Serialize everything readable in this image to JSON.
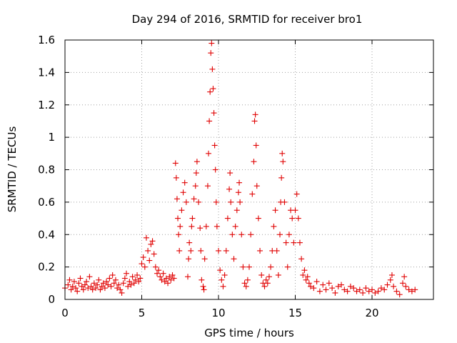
{
  "chart_data": {
    "type": "scatter",
    "title": "Day 294 of 2016, SRMTID for receiver bro1",
    "xlabel": "GPS time / hours",
    "ylabel": "SRMTID / TECUs",
    "xlim": [
      0,
      24
    ],
    "ylim": [
      0,
      1.6
    ],
    "x_ticks": [
      0,
      5,
      10,
      15,
      20
    ],
    "y_ticks": [
      0,
      0.2,
      0.4,
      0.6,
      0.8,
      1,
      1.2,
      1.4,
      1.6
    ],
    "x_tick_labels": [
      "0",
      "5",
      "10",
      "15",
      "20"
    ],
    "y_tick_labels": [
      "0",
      "0.2",
      "0.4",
      "0.6",
      "0.8",
      "1",
      "1.2",
      "1.4",
      "1.6"
    ],
    "grid": true,
    "marker": "+",
    "color": "#e00000",
    "series": [
      {
        "name": "bro1",
        "points": [
          [
            0.0,
            0.07
          ],
          [
            0.2,
            0.09
          ],
          [
            0.3,
            0.12
          ],
          [
            0.4,
            0.06
          ],
          [
            0.5,
            0.08
          ],
          [
            0.6,
            0.11
          ],
          [
            0.7,
            0.07
          ],
          [
            0.8,
            0.05
          ],
          [
            0.9,
            0.1
          ],
          [
            1.0,
            0.13
          ],
          [
            1.1,
            0.08
          ],
          [
            1.2,
            0.06
          ],
          [
            1.3,
            0.09
          ],
          [
            1.4,
            0.11
          ],
          [
            1.5,
            0.07
          ],
          [
            1.6,
            0.14
          ],
          [
            1.7,
            0.08
          ],
          [
            1.8,
            0.06
          ],
          [
            1.9,
            0.1
          ],
          [
            2.0,
            0.07
          ],
          [
            2.1,
            0.09
          ],
          [
            2.2,
            0.12
          ],
          [
            2.3,
            0.06
          ],
          [
            2.4,
            0.08
          ],
          [
            2.5,
            0.1
          ],
          [
            2.6,
            0.07
          ],
          [
            2.7,
            0.11
          ],
          [
            2.8,
            0.09
          ],
          [
            2.9,
            0.13
          ],
          [
            3.0,
            0.08
          ],
          [
            3.1,
            0.15
          ],
          [
            3.2,
            0.1
          ],
          [
            3.3,
            0.12
          ],
          [
            3.4,
            0.07
          ],
          [
            3.5,
            0.09
          ],
          [
            3.6,
            0.06
          ],
          [
            3.7,
            0.04
          ],
          [
            3.8,
            0.1
          ],
          [
            3.9,
            0.13
          ],
          [
            4.0,
            0.16
          ],
          [
            4.1,
            0.08
          ],
          [
            4.2,
            0.11
          ],
          [
            4.3,
            0.09
          ],
          [
            4.4,
            0.14
          ],
          [
            4.5,
            0.1
          ],
          [
            4.6,
            0.12
          ],
          [
            4.7,
            0.15
          ],
          [
            4.8,
            0.11
          ],
          [
            4.9,
            0.13
          ],
          [
            5.0,
            0.22
          ],
          [
            5.1,
            0.26
          ],
          [
            5.2,
            0.2
          ],
          [
            5.3,
            0.38
          ],
          [
            5.4,
            0.3
          ],
          [
            5.5,
            0.24
          ],
          [
            5.6,
            0.34
          ],
          [
            5.7,
            0.36
          ],
          [
            5.8,
            0.28
          ],
          [
            5.9,
            0.2
          ],
          [
            6.0,
            0.16
          ],
          [
            6.1,
            0.18
          ],
          [
            6.2,
            0.14
          ],
          [
            6.3,
            0.12
          ],
          [
            6.4,
            0.16
          ],
          [
            6.5,
            0.11
          ],
          [
            6.6,
            0.13
          ],
          [
            6.7,
            0.1
          ],
          [
            6.8,
            0.14
          ],
          [
            6.9,
            0.12
          ],
          [
            7.0,
            0.15
          ],
          [
            7.1,
            0.13
          ],
          [
            7.2,
            0.84
          ],
          [
            7.25,
            0.75
          ],
          [
            7.3,
            0.62
          ],
          [
            7.35,
            0.5
          ],
          [
            7.4,
            0.4
          ],
          [
            7.45,
            0.3
          ],
          [
            7.5,
            0.45
          ],
          [
            7.6,
            0.55
          ],
          [
            7.7,
            0.66
          ],
          [
            7.8,
            0.72
          ],
          [
            7.9,
            0.6
          ],
          [
            8.0,
            0.14
          ],
          [
            8.05,
            0.25
          ],
          [
            8.1,
            0.35
          ],
          [
            8.2,
            0.3
          ],
          [
            8.25,
            0.45
          ],
          [
            8.3,
            0.5
          ],
          [
            8.4,
            0.62
          ],
          [
            8.5,
            0.7
          ],
          [
            8.55,
            0.78
          ],
          [
            8.6,
            0.85
          ],
          [
            8.7,
            0.6
          ],
          [
            8.8,
            0.44
          ],
          [
            8.85,
            0.3
          ],
          [
            8.9,
            0.12
          ],
          [
            9.0,
            0.08
          ],
          [
            9.05,
            0.06
          ],
          [
            9.1,
            0.25
          ],
          [
            9.2,
            0.45
          ],
          [
            9.3,
            0.7
          ],
          [
            9.35,
            0.9
          ],
          [
            9.4,
            1.1
          ],
          [
            9.45,
            1.28
          ],
          [
            9.5,
            1.52
          ],
          [
            9.55,
            1.58
          ],
          [
            9.6,
            1.42
          ],
          [
            9.65,
            1.3
          ],
          [
            9.7,
            1.15
          ],
          [
            9.75,
            0.95
          ],
          [
            9.8,
            0.8
          ],
          [
            9.85,
            0.6
          ],
          [
            9.9,
            0.45
          ],
          [
            10.0,
            0.3
          ],
          [
            10.1,
            0.18
          ],
          [
            10.2,
            0.12
          ],
          [
            10.3,
            0.08
          ],
          [
            10.4,
            0.15
          ],
          [
            10.5,
            0.3
          ],
          [
            10.6,
            0.5
          ],
          [
            10.7,
            0.68
          ],
          [
            10.75,
            0.78
          ],
          [
            10.8,
            0.6
          ],
          [
            10.9,
            0.4
          ],
          [
            11.0,
            0.25
          ],
          [
            11.1,
            0.45
          ],
          [
            11.2,
            0.55
          ],
          [
            11.3,
            0.66
          ],
          [
            11.35,
            0.72
          ],
          [
            11.4,
            0.6
          ],
          [
            11.5,
            0.4
          ],
          [
            11.6,
            0.2
          ],
          [
            11.7,
            0.1
          ],
          [
            11.8,
            0.08
          ],
          [
            11.9,
            0.12
          ],
          [
            12.0,
            0.2
          ],
          [
            12.1,
            0.4
          ],
          [
            12.2,
            0.65
          ],
          [
            12.3,
            0.85
          ],
          [
            12.35,
            1.1
          ],
          [
            12.4,
            1.14
          ],
          [
            12.45,
            0.95
          ],
          [
            12.5,
            0.7
          ],
          [
            12.6,
            0.5
          ],
          [
            12.7,
            0.3
          ],
          [
            12.8,
            0.15
          ],
          [
            12.9,
            0.1
          ],
          [
            13.0,
            0.08
          ],
          [
            13.1,
            0.12
          ],
          [
            13.2,
            0.1
          ],
          [
            13.3,
            0.14
          ],
          [
            13.4,
            0.2
          ],
          [
            13.5,
            0.3
          ],
          [
            13.6,
            0.45
          ],
          [
            13.7,
            0.55
          ],
          [
            13.8,
            0.3
          ],
          [
            13.9,
            0.15
          ],
          [
            14.0,
            0.4
          ],
          [
            14.05,
            0.6
          ],
          [
            14.1,
            0.75
          ],
          [
            14.15,
            0.9
          ],
          [
            14.2,
            0.85
          ],
          [
            14.3,
            0.6
          ],
          [
            14.4,
            0.35
          ],
          [
            14.5,
            0.2
          ],
          [
            14.6,
            0.4
          ],
          [
            14.7,
            0.55
          ],
          [
            14.8,
            0.5
          ],
          [
            14.9,
            0.35
          ],
          [
            15.0,
            0.55
          ],
          [
            15.1,
            0.65
          ],
          [
            15.2,
            0.5
          ],
          [
            15.3,
            0.35
          ],
          [
            15.4,
            0.25
          ],
          [
            15.5,
            0.15
          ],
          [
            15.6,
            0.18
          ],
          [
            15.7,
            0.12
          ],
          [
            15.8,
            0.14
          ],
          [
            15.9,
            0.1
          ],
          [
            16.0,
            0.08
          ],
          [
            16.2,
            0.07
          ],
          [
            16.4,
            0.11
          ],
          [
            16.6,
            0.05
          ],
          [
            16.8,
            0.09
          ],
          [
            17.0,
            0.06
          ],
          [
            17.2,
            0.1
          ],
          [
            17.4,
            0.07
          ],
          [
            17.6,
            0.04
          ],
          [
            17.8,
            0.08
          ],
          [
            18.0,
            0.09
          ],
          [
            18.2,
            0.06
          ],
          [
            18.4,
            0.05
          ],
          [
            18.6,
            0.08
          ],
          [
            18.8,
            0.07
          ],
          [
            19.0,
            0.05
          ],
          [
            19.2,
            0.06
          ],
          [
            19.4,
            0.04
          ],
          [
            19.6,
            0.07
          ],
          [
            19.8,
            0.05
          ],
          [
            20.0,
            0.06
          ],
          [
            20.2,
            0.04
          ],
          [
            20.4,
            0.05
          ],
          [
            20.6,
            0.07
          ],
          [
            20.8,
            0.06
          ],
          [
            21.0,
            0.09
          ],
          [
            21.2,
            0.12
          ],
          [
            21.3,
            0.15
          ],
          [
            21.4,
            0.08
          ],
          [
            21.6,
            0.05
          ],
          [
            21.8,
            0.03
          ],
          [
            22.0,
            0.1
          ],
          [
            22.1,
            0.14
          ],
          [
            22.2,
            0.08
          ],
          [
            22.4,
            0.06
          ],
          [
            22.6,
            0.05
          ],
          [
            22.8,
            0.06
          ]
        ]
      }
    ]
  }
}
